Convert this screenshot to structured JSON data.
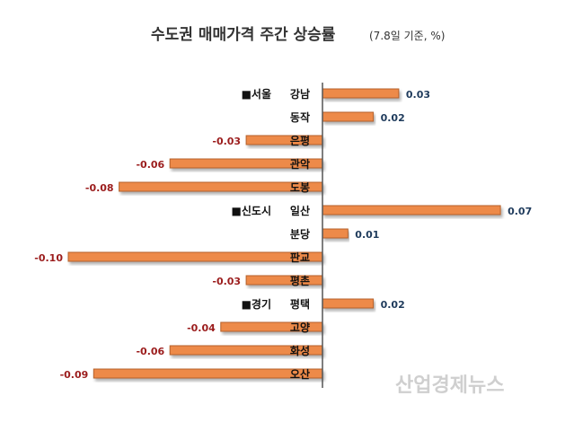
{
  "chart_data": {
    "type": "bar",
    "orientation": "horizontal",
    "title": "수도권 매매가격 주간 상승률",
    "subtitle": "(7.8일 기준, %)",
    "groups": [
      {
        "label": "■서울",
        "start": 0
      },
      {
        "label": "■신도시",
        "start": 5
      },
      {
        "label": "■경기",
        "start": 9
      }
    ],
    "categories": [
      "강남",
      "동작",
      "은평",
      "관악",
      "도봉",
      "일산",
      "분당",
      "판교",
      "평촌",
      "평택",
      "고양",
      "화성",
      "오산"
    ],
    "values": [
      0.03,
      0.02,
      -0.03,
      -0.06,
      -0.08,
      0.07,
      0.01,
      -0.1,
      -0.03,
      0.02,
      -0.04,
      -0.06,
      -0.09
    ],
    "labels": [
      "0.03",
      "0.02",
      "-0.03",
      "-0.06",
      "-0.08",
      "0.07",
      "0.01",
      "-0.10",
      "-0.03",
      "0.02",
      "-0.04",
      "-0.06",
      "-0.09"
    ],
    "xlim": [
      -0.1,
      0.07
    ],
    "grid": false,
    "colors": {
      "bar": "#ed8a4a",
      "bar_border": "#b5602a",
      "positive_label": "#1f3b5c",
      "negative_label": "#9b1c1c"
    },
    "watermark": "산업경제뉴스"
  }
}
